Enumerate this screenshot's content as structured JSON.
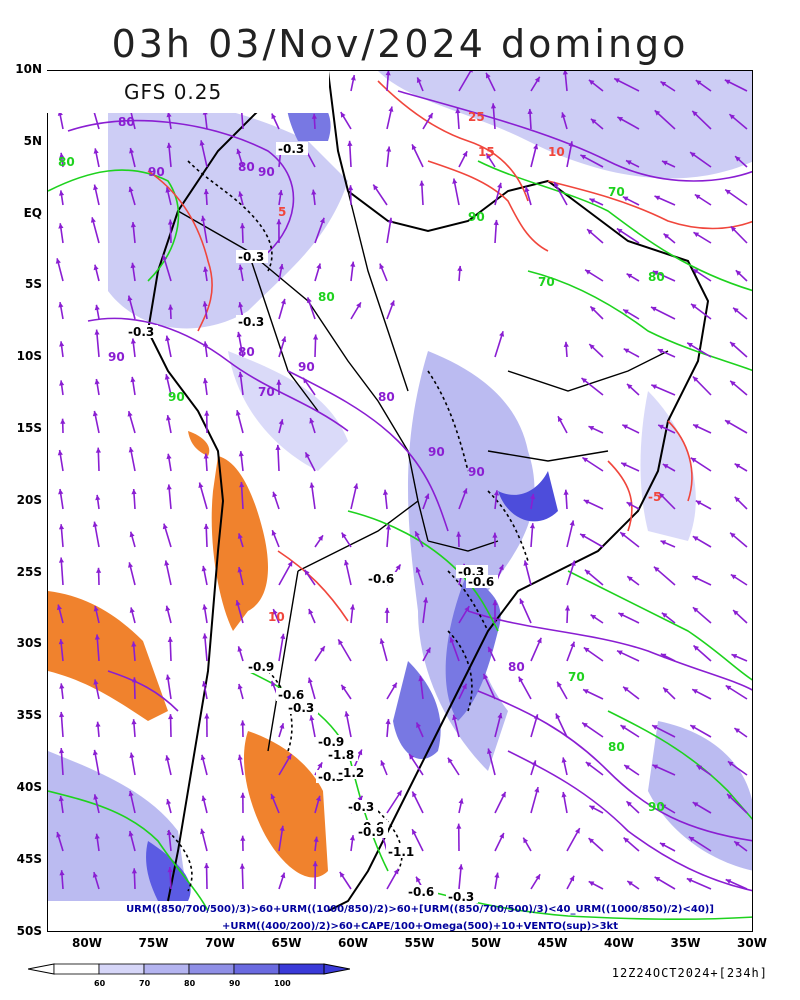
{
  "title": "03h 03/Nov/2024 domingo",
  "model": "GFS 0.25",
  "lat_labels": [
    "10N",
    "5N",
    "EQ",
    "5S",
    "10S",
    "15S",
    "20S",
    "25S",
    "30S",
    "35S",
    "40S",
    "45S",
    "50S"
  ],
  "lon_labels": [
    "80W",
    "75W",
    "70W",
    "65W",
    "60W",
    "55W",
    "50W",
    "45W",
    "40W",
    "35W",
    "30W"
  ],
  "map": {
    "contour_labels_purple": [
      "80",
      "90",
      "80",
      "90",
      "90",
      "80",
      "90",
      "70",
      "80",
      "90",
      "90",
      "80"
    ],
    "contour_labels_green": [
      "80",
      "70",
      "80",
      "90",
      "70",
      "80",
      "90",
      "70",
      "80",
      "90"
    ],
    "contour_labels_red": [
      "15",
      "10",
      "25",
      "5",
      "10",
      "-5"
    ],
    "omega_labels": [
      "-0.3",
      "-0.3",
      "-0.3",
      "-0.3",
      "-0.6",
      "-0.3",
      "-0.6",
      "-0.9",
      "-0.6",
      "-0.3",
      "-0.9",
      "-1.8",
      "-0.3",
      "-1.2",
      "-0.3",
      "-0.6",
      "-0.9",
      "-1.1",
      "-0.6",
      "-0.3"
    ]
  },
  "legend_note_1": "URM((850/700/500)/3)>60+URM((1000/850)/2)>60+[URM((850/700/500)/3)<40_URM((1000/850)/2)<40)]",
  "legend_note_2": "+URM((400/200)/2)>60+CAPE/100+Omega(500)+10+VENTO(sup)>3kt",
  "colorbar": {
    "ticks": [
      "60",
      "70",
      "80",
      "90",
      "100"
    ],
    "colors": [
      "#ffffff",
      "#d6d6f8",
      "#b4b4f0",
      "#8f8fe6",
      "#6a6ae0",
      "#3a3ad8"
    ]
  },
  "run_label": "12Z24OCT2024+[234h]",
  "colors": {
    "purple": "#8a1ed2",
    "green": "#1ed21e",
    "red": "#f0463c",
    "orange": "#f0822d",
    "blue_light": "#c8c8f4",
    "blue_dark": "#4a4ae0"
  }
}
